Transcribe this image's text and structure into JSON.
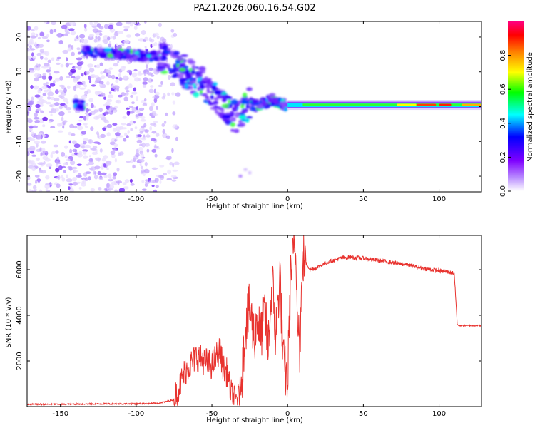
{
  "title": "PAZ1.2026.060.16.54.G02",
  "colors": {
    "snr_line": "#e8322e",
    "axis": "#000000"
  },
  "chart_data": [
    {
      "type": "heatmap",
      "name": "spectrogram",
      "xlabel": "Height of straight line (km)",
      "ylabel": "Frequency (Hz)",
      "xlim": [
        -172,
        128
      ],
      "ylim": [
        -24.5,
        24.5
      ],
      "xticks": [
        -150,
        -100,
        -50,
        0,
        50,
        100
      ],
      "yticks": [
        -20,
        -10,
        0,
        10,
        20
      ],
      "ridge": {
        "x": [
          -135,
          -125,
          -115,
          -105,
          -95,
          -85,
          -78,
          -72,
          -65,
          -58,
          -50,
          -45,
          -40,
          -35,
          -30,
          -25,
          -20,
          -15,
          -10,
          -5,
          0,
          10,
          25,
          50,
          75,
          100,
          128
        ],
        "freq": [
          16,
          15.5,
          15,
          15,
          14.5,
          14.5,
          13,
          12,
          9,
          7,
          4,
          1,
          -1,
          -3,
          -1,
          1,
          0,
          1,
          2,
          1,
          0,
          0.5,
          0.5,
          0.5,
          0.5,
          0.5,
          0.5
        ]
      },
      "colorbar": {
        "label": "Normalized spectral amplitude",
        "range": [
          0,
          1
        ],
        "ticks": [
          "0.0",
          "0.2",
          "0.4",
          "0.6",
          "0.8"
        ],
        "colors": [
          "#ffffff",
          "#7f00ff",
          "#0000ff",
          "#00ffff",
          "#00ff00",
          "#ffff00",
          "#ff7f00",
          "#ff0000",
          "#ff0080"
        ]
      }
    },
    {
      "type": "line",
      "name": "snr",
      "xlabel": "Height of straight line (km)",
      "ylabel": "SNR (10 * v/v)",
      "xlim": [
        -172,
        128
      ],
      "ylim": [
        0,
        7500
      ],
      "xticks": [
        -150,
        -100,
        -50,
        0,
        50,
        100
      ],
      "yticks": [
        2000,
        4000,
        6000
      ],
      "series": [
        {
          "name": "SNR",
          "x": [
            -172,
            -150,
            -120,
            -100,
            -85,
            -75,
            -72,
            -68,
            -65,
            -60,
            -55,
            -50,
            -45,
            -42,
            -40,
            -37,
            -35,
            -32,
            -30,
            -28,
            -25,
            -22,
            -20,
            -18,
            -15,
            -13,
            -10,
            -8,
            -5,
            -3,
            0,
            2,
            5,
            8,
            10,
            15,
            20,
            25,
            30,
            35,
            40,
            50,
            60,
            70,
            80,
            90,
            100,
            110,
            112,
            113,
            118,
            128
          ],
          "values": [
            100,
            100,
            120,
            120,
            150,
            300,
            800,
            1500,
            1800,
            2200,
            2000,
            1800,
            2500,
            1600,
            1500,
            500,
            300,
            400,
            1500,
            3500,
            4300,
            3000,
            4000,
            3000,
            4200,
            2500,
            5500,
            3000,
            5800,
            2000,
            1000,
            6000,
            7000,
            2500,
            6500,
            6000,
            6100,
            6300,
            6400,
            6500,
            6550,
            6500,
            6400,
            6300,
            6200,
            6050,
            5950,
            5850,
            3600,
            3550,
            3550,
            3550
          ]
        }
      ]
    }
  ]
}
